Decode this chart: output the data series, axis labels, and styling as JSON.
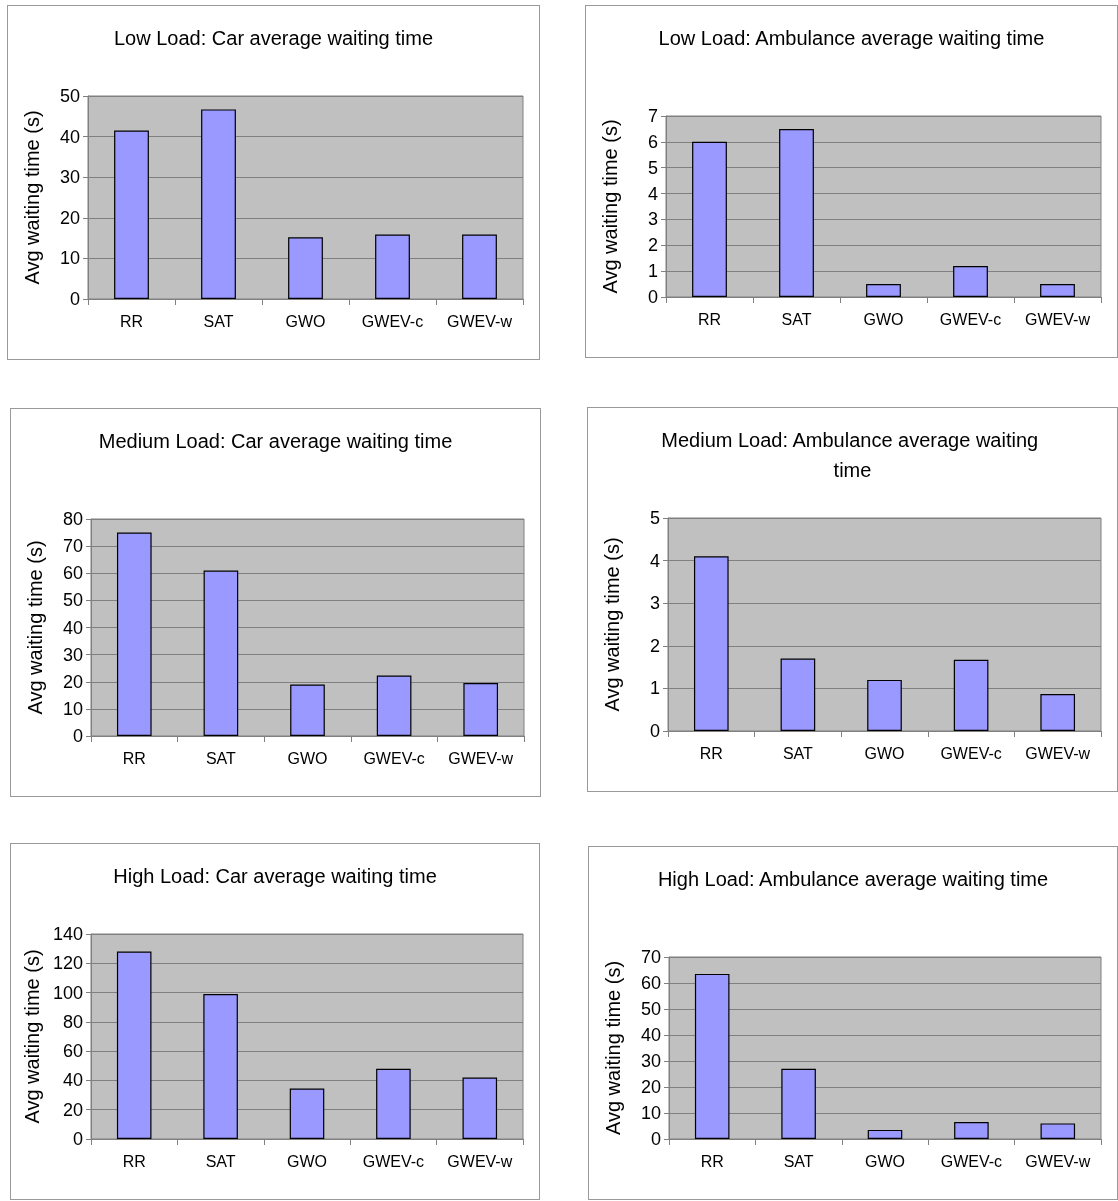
{
  "chart_data": [
    {
      "type": "bar",
      "title": "Low Load: Car average waiting time",
      "ylabel": "Avg waiting time (s)",
      "categories": [
        "RR",
        "SAT",
        "GWO",
        "GWEV-c",
        "GWEV-w"
      ],
      "values": [
        41.5,
        46.7,
        15.2,
        15.9,
        15.9
      ],
      "color": "#9999ff",
      "ylim": [
        0,
        50
      ],
      "yticks": [
        0,
        10,
        20,
        30,
        40,
        50
      ],
      "grid": "y"
    },
    {
      "type": "bar",
      "title": "Low Load: Ambulance average waiting time",
      "ylabel": "Avg waiting time (s)",
      "categories": [
        "RR",
        "SAT",
        "GWO",
        "GWEV-c",
        "GWEV-w"
      ],
      "values": [
        6.0,
        6.5,
        0.5,
        1.2,
        0.5
      ],
      "color": "#9999ff",
      "ylim": [
        0,
        7
      ],
      "yticks": [
        0,
        1,
        2,
        3,
        4,
        5,
        6,
        7
      ],
      "grid": "y"
    },
    {
      "type": "bar",
      "title": "Medium Load: Car average waiting time",
      "ylabel": "Avg waiting time (s)",
      "categories": [
        "RR",
        "SAT",
        "GWO",
        "GWEV-c",
        "GWEV-w"
      ],
      "values": [
        75,
        61,
        19,
        22.3,
        19.5
      ],
      "color": "#9999ff",
      "ylim": [
        0,
        80
      ],
      "yticks": [
        0,
        10,
        20,
        30,
        40,
        50,
        60,
        70,
        80
      ],
      "grid": "y"
    },
    {
      "type": "bar",
      "title": "Medium Load: Ambulance average waiting time",
      "ylabel": "Avg waiting time (s)",
      "categories": [
        "RR",
        "SAT",
        "GWO",
        "GWEV-c",
        "GWEV-w"
      ],
      "values": [
        4.1,
        1.7,
        1.2,
        1.67,
        0.87
      ],
      "color": "#9999ff",
      "ylim": [
        0,
        5
      ],
      "yticks": [
        0,
        1,
        2,
        3,
        4,
        5
      ],
      "grid": "y"
    },
    {
      "type": "bar",
      "title": "High Load: Car average waiting time",
      "ylabel": "Avg waiting time (s)",
      "categories": [
        "RR",
        "SAT",
        "GWO",
        "GWEV-c",
        "GWEV-w"
      ],
      "values": [
        128,
        99,
        34.5,
        48,
        42
      ],
      "color": "#9999ff",
      "ylim": [
        0,
        140
      ],
      "yticks": [
        0,
        20,
        40,
        60,
        80,
        100,
        120,
        140
      ],
      "grid": "y"
    },
    {
      "type": "bar",
      "title": "High Load: Ambulance average waiting time",
      "ylabel": "Avg waiting time (s)",
      "categories": [
        "RR",
        "SAT",
        "GWO",
        "GWEV-c",
        "GWEV-w"
      ],
      "values": [
        63.5,
        27,
        3.5,
        6.5,
        6
      ],
      "color": "#9999ff",
      "ylim": [
        0,
        70
      ],
      "yticks": [
        0,
        10,
        20,
        30,
        40,
        50,
        60,
        70
      ],
      "grid": "y"
    }
  ]
}
